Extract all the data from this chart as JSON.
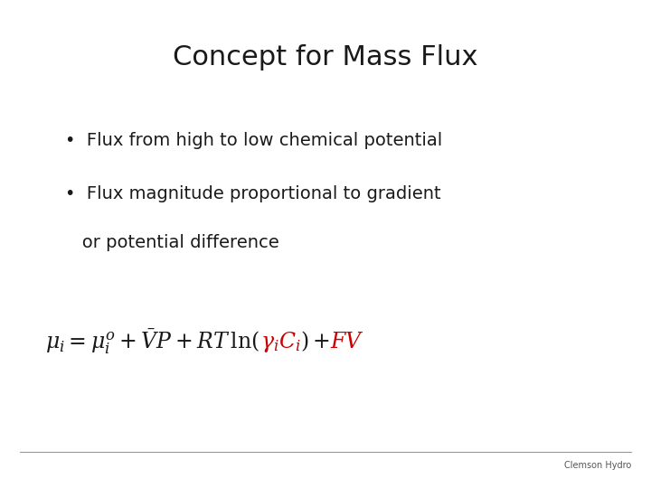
{
  "title": "Concept for Mass Flux",
  "title_fontsize": 22,
  "bullet1": "•  Flux from high to low chemical potential",
  "bullet2": "•  Flux magnitude proportional to gradient",
  "bullet2_cont": "   or potential difference",
  "bullet_fontsize": 14,
  "eq_fontsize": 17,
  "background_color": "#ffffff",
  "text_color": "#1a1a1a",
  "red_color": "#cc0000",
  "footer_line_color": "#999999",
  "footer_text": "Clemson Hydro",
  "footer_fontsize": 7,
  "eq_seg1": "$\\mu_i = \\mu_i^o + \\bar{V}P + RT\\,\\mathrm{ln}(\\gamma_i C_i) +$",
  "eq_seg2": "$FV$",
  "eq_seg1b": "$\\mu_i = \\mu_i^o + \\bar{V}P + RT\\,\\mathrm{ln}($",
  "eq_seg_red1": "$\\gamma_i C_i$",
  "eq_seg_close": "$) +$",
  "eq_seg_fv": "$FV$"
}
